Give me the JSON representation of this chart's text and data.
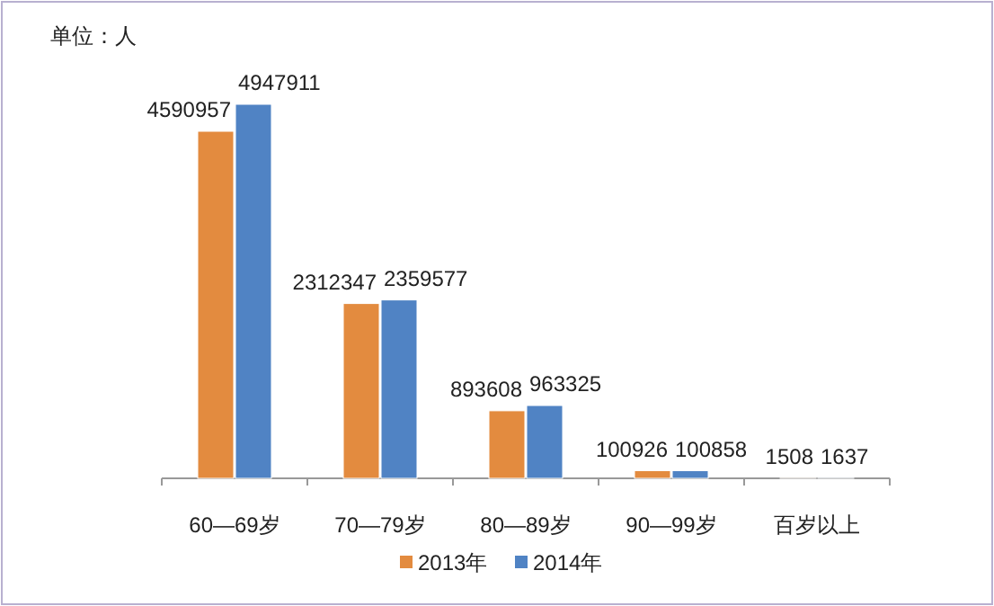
{
  "chart_data": {
    "type": "bar",
    "annotations": [
      "单位：人"
    ],
    "categories": [
      "60—69岁",
      "70—79岁",
      "80—89岁",
      "90—99岁",
      "百岁以上"
    ],
    "series": [
      {
        "name": "2013年",
        "color": "#e38b3f",
        "values": [
          4590957,
          2312347,
          893608,
          100926,
          1508
        ]
      },
      {
        "name": "2014年",
        "color": "#5083c4",
        "values": [
          4947911,
          2359577,
          963325,
          100858,
          1637
        ]
      }
    ],
    "data_labels": true,
    "legend": "bottom"
  }
}
